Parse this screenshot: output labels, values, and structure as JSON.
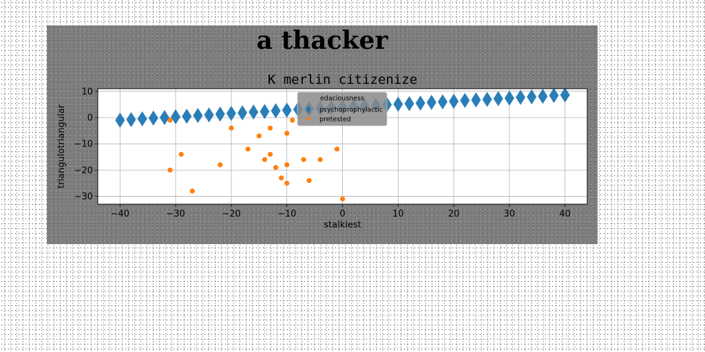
{
  "suptitle": "a thacker",
  "chart_data": {
    "type": "scatter",
    "title": "K merlin citizenize",
    "xlabel": "stalkiest",
    "ylabel": "triangulotriangular",
    "xlim": [
      -44,
      44
    ],
    "ylim": [
      -33,
      11
    ],
    "xticks": [
      -40,
      -30,
      -20,
      -10,
      0,
      10,
      20,
      30,
      40
    ],
    "yticks": [
      -30,
      -20,
      -10,
      0,
      10
    ],
    "xtick_labels": [
      "−40",
      "−30",
      "−20",
      "−10",
      "0",
      "10",
      "20",
      "30",
      "40"
    ],
    "ytick_labels": [
      "−30",
      "−20",
      "−10",
      "0",
      "10"
    ],
    "grid": true,
    "legend": {
      "title": "edaciousness",
      "placement": "top-center"
    },
    "series": [
      {
        "name": "psychoprophylactic",
        "marker": "diamond",
        "color": "#1f77b4",
        "x": [
          -40,
          -38,
          -36,
          -34,
          -32,
          -30,
          -28,
          -26,
          -24,
          -22,
          -20,
          -18,
          -16,
          -14,
          -12,
          -10,
          -8,
          -6,
          -4,
          -2,
          0,
          2,
          4,
          6,
          8,
          10,
          12,
          14,
          16,
          18,
          20,
          22,
          24,
          26,
          28,
          30,
          32,
          34,
          36,
          38,
          40
        ],
        "y": [
          -1.0,
          -0.8,
          -0.5,
          -0.2,
          0.0,
          0.3,
          0.5,
          0.8,
          1.0,
          1.3,
          1.6,
          1.8,
          2.1,
          2.3,
          2.6,
          2.8,
          3.1,
          3.3,
          3.5,
          3.8,
          4.0,
          4.2,
          4.4,
          4.6,
          4.9,
          5.1,
          5.3,
          5.5,
          5.8,
          6.0,
          6.2,
          6.5,
          6.7,
          6.9,
          7.2,
          7.4,
          7.7,
          7.9,
          8.1,
          8.4,
          8.6
        ]
      },
      {
        "name": "pretested",
        "marker": "circle",
        "color": "#ff7f0e",
        "x": [
          -31,
          -31,
          -29,
          -27,
          -22,
          -20,
          -17,
          -15,
          -14,
          -13,
          -13,
          -12,
          -11,
          -10,
          -10,
          -10,
          -9,
          -7,
          -6,
          -4,
          -1,
          0
        ],
        "y": [
          -1,
          -20,
          -14,
          -28,
          -18,
          -4,
          -12,
          -7,
          -16,
          -4,
          -14,
          -19,
          -23,
          -6,
          -18,
          -25,
          -1,
          -16,
          -24,
          -16,
          -12,
          -31
        ]
      }
    ]
  }
}
